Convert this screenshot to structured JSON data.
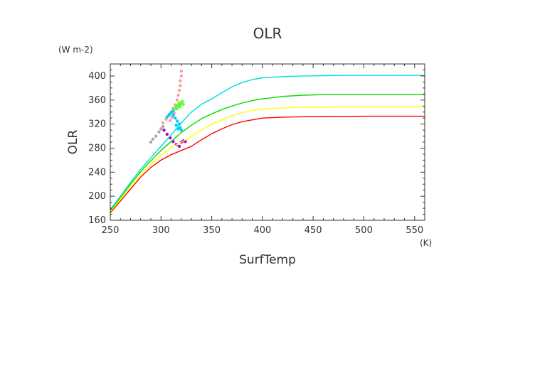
{
  "chart_data": {
    "type": "line",
    "title": "OLR",
    "xlabel": "SurfTemp",
    "ylabel": "OLR",
    "x_unit": "(K)",
    "y_unit": "(W m-2)",
    "xlim": [
      250,
      560
    ],
    "ylim": [
      160,
      420
    ],
    "x_ticks": [
      250,
      300,
      350,
      400,
      450,
      500,
      550
    ],
    "y_ticks": [
      160,
      200,
      240,
      280,
      320,
      360,
      400
    ],
    "grid": false,
    "series": [
      {
        "color": "#ff0000",
        "x": [
          250,
          260,
          270,
          280,
          290,
          300,
          310,
          320,
          330,
          340,
          350,
          360,
          370,
          380,
          390,
          400,
          420,
          440,
          460,
          480,
          500,
          520,
          540,
          560
        ],
        "y": [
          172,
          192,
          212,
          232,
          248,
          260,
          269,
          276,
          283,
          294,
          304,
          312,
          319,
          324,
          327,
          330,
          331.5,
          332.2,
          332.6,
          332.8,
          333,
          333,
          333,
          333
        ]
      },
      {
        "color": "#ffff00",
        "x": [
          250,
          260,
          270,
          280,
          290,
          300,
          310,
          320,
          330,
          340,
          350,
          360,
          370,
          380,
          390,
          400,
          420,
          440,
          460,
          480,
          500,
          520,
          540,
          560
        ],
        "y": [
          174,
          195,
          216,
          236,
          253,
          268,
          281,
          290,
          299,
          310,
          320,
          327,
          334,
          339,
          343,
          345,
          347,
          348,
          348.5,
          348.8,
          349,
          349,
          349,
          349
        ]
      },
      {
        "color": "#00dd00",
        "x": [
          250,
          260,
          270,
          280,
          290,
          300,
          310,
          320,
          330,
          340,
          350,
          360,
          370,
          380,
          390,
          400,
          420,
          440,
          460,
          480,
          500,
          520,
          540,
          560
        ],
        "y": [
          176,
          198,
          220,
          241,
          259,
          276,
          291,
          306,
          318,
          329,
          337,
          344,
          350,
          355,
          359,
          362,
          366,
          368,
          369,
          369,
          369,
          369,
          369,
          369
        ]
      },
      {
        "color": "#00dddd",
        "x": [
          250,
          260,
          270,
          280,
          290,
          300,
          310,
          320,
          330,
          340,
          350,
          360,
          370,
          380,
          390,
          400,
          420,
          440,
          460,
          480,
          500,
          520,
          540,
          560
        ],
        "y": [
          178,
          200,
          223,
          245,
          264,
          283,
          302,
          322,
          340,
          353,
          362,
          372,
          382,
          389,
          394,
          397,
          399,
          400,
          400.5,
          400.8,
          401,
          401,
          401,
          401
        ]
      }
    ],
    "scatter_clusters": [
      {
        "color": "#f4a0a0",
        "points": [
          [
            302,
            322
          ],
          [
            305,
            328
          ],
          [
            308,
            334
          ],
          [
            310,
            340
          ],
          [
            312,
            346
          ],
          [
            314,
            352
          ],
          [
            316,
            360
          ],
          [
            317,
            368
          ],
          [
            318,
            376
          ],
          [
            319,
            384
          ],
          [
            319,
            392
          ],
          [
            320,
            400
          ],
          [
            320,
            408
          ],
          [
            313,
            338
          ],
          [
            315,
            345
          ],
          [
            311,
            331
          ],
          [
            309,
            326
          ]
        ]
      },
      {
        "color": "#00ccff",
        "points": [
          [
            306,
            332
          ],
          [
            308,
            336
          ],
          [
            310,
            339
          ],
          [
            312,
            342
          ],
          [
            314,
            346
          ],
          [
            316,
            349
          ],
          [
            318,
            352
          ],
          [
            320,
            355
          ],
          [
            312,
            335
          ],
          [
            314,
            330
          ],
          [
            316,
            325
          ],
          [
            318,
            320
          ],
          [
            319,
            314
          ],
          [
            320,
            310
          ],
          [
            317,
            312
          ],
          [
            315,
            318
          ]
        ]
      },
      {
        "color": "#66ff33",
        "points": [
          [
            313,
            345
          ],
          [
            315,
            348
          ],
          [
            317,
            352
          ],
          [
            318,
            355
          ],
          [
            320,
            356
          ],
          [
            321,
            358
          ],
          [
            322,
            353
          ],
          [
            319,
            349
          ],
          [
            316,
            346
          ]
        ]
      },
      {
        "color": "#aaaaaa",
        "points": [
          [
            290,
            290
          ],
          [
            292,
            295
          ],
          [
            295,
            300
          ],
          [
            298,
            307
          ],
          [
            300,
            312
          ],
          [
            302,
            316
          ]
        ]
      },
      {
        "color": "#aa00dd",
        "points": [
          [
            303,
            310
          ],
          [
            306,
            303
          ],
          [
            309,
            297
          ],
          [
            312,
            291
          ],
          [
            315,
            286
          ],
          [
            318,
            283
          ],
          [
            320,
            290
          ],
          [
            322,
            292
          ],
          [
            324,
            291
          ]
        ]
      }
    ]
  }
}
